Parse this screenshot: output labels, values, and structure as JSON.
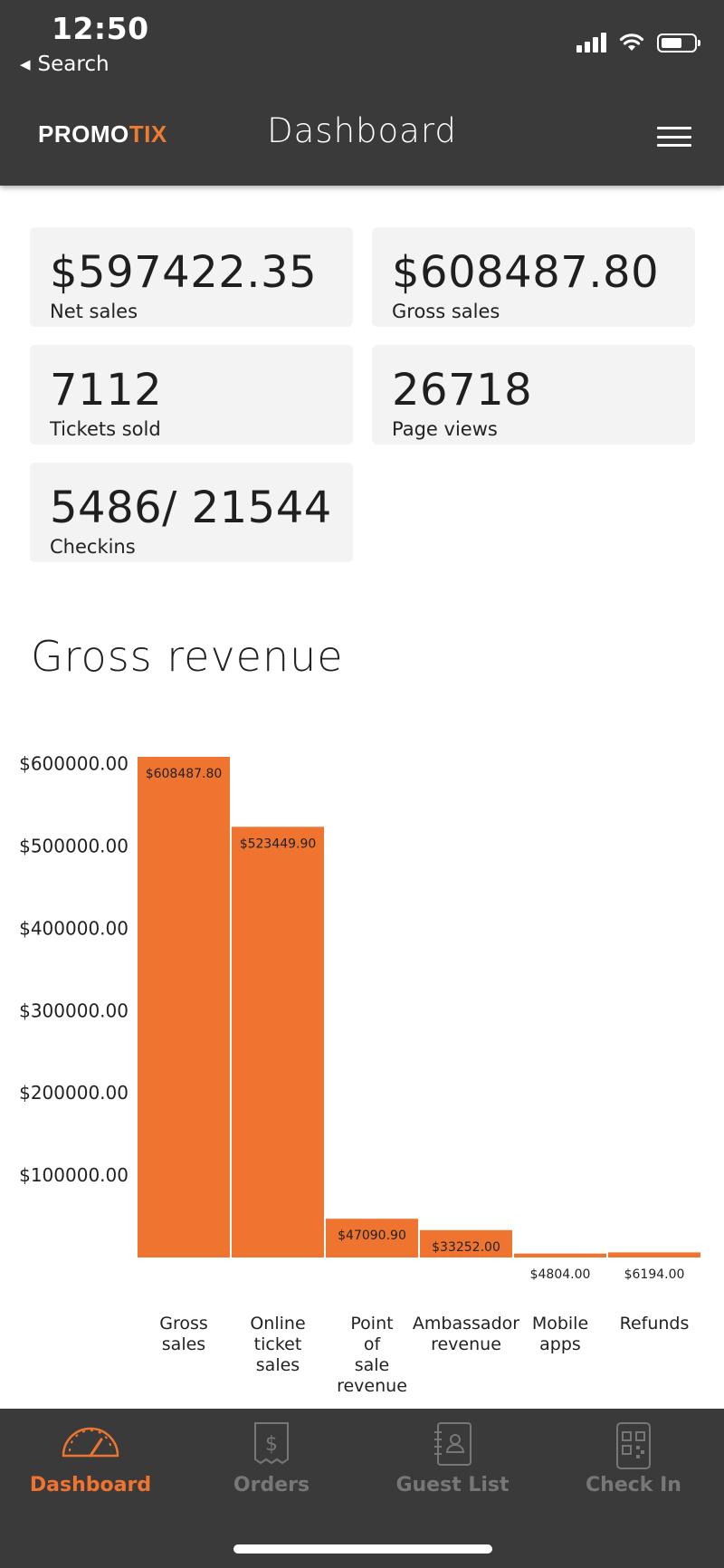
{
  "status_bar": {
    "time": "12:50",
    "back_label": "Search",
    "icons": [
      "signal-icon",
      "wifi-icon",
      "battery-icon"
    ]
  },
  "header": {
    "logo_primary": "PROMO",
    "logo_accent": "TIX",
    "title": "Dashboard",
    "menu_icon": "hamburger-menu-icon"
  },
  "stats": {
    "net_sales": {
      "value": "$597422.35",
      "label": "Net sales"
    },
    "gross_sales": {
      "value": "$608487.80",
      "label": "Gross sales"
    },
    "tickets_sold": {
      "value": "7112",
      "label": "Tickets sold"
    },
    "page_views": {
      "value": "26718",
      "label": "Page views"
    },
    "checkins": {
      "value": "5486/ 21544",
      "label": "Checkins"
    }
  },
  "chart_section": {
    "title": "Gross revenue"
  },
  "chart_data": {
    "type": "bar",
    "title": "Gross revenue",
    "categories": [
      [
        "Gross",
        "sales"
      ],
      [
        "Online",
        "ticket",
        "sales"
      ],
      [
        "Point",
        "of",
        "sale",
        "revenue"
      ],
      [
        "Ambassador",
        "revenue"
      ],
      [
        "Mobile",
        "apps"
      ],
      [
        "Refunds"
      ]
    ],
    "values": [
      608487.8,
      523449.9,
      47090.9,
      33252.0,
      4804.0,
      6194.0
    ],
    "value_labels": [
      "$608487.80",
      "$523449.90",
      "$47090.90",
      "$33252.00",
      "$4804.00",
      "$6194.00"
    ],
    "yticks": [
      100000,
      200000,
      300000,
      400000,
      500000,
      600000
    ],
    "ytick_labels": [
      "$100000.00",
      "$200000.00",
      "$300000.00",
      "$400000.00",
      "$500000.00",
      "$600000.00"
    ],
    "ylim": [
      0,
      608487.8
    ],
    "bar_color": "#ef7430",
    "grid": false,
    "xlabel": "",
    "ylabel": ""
  },
  "bottom_nav": {
    "active_color": "#ef7430",
    "inactive_color": "#777777",
    "items": [
      {
        "label": "Dashboard",
        "icon": "speedometer-icon",
        "active": true
      },
      {
        "label": "Orders",
        "icon": "receipt-dollar-icon",
        "active": false
      },
      {
        "label": "Guest List",
        "icon": "contact-book-icon",
        "active": false
      },
      {
        "label": "Check In",
        "icon": "qr-phone-icon",
        "active": false
      }
    ]
  }
}
